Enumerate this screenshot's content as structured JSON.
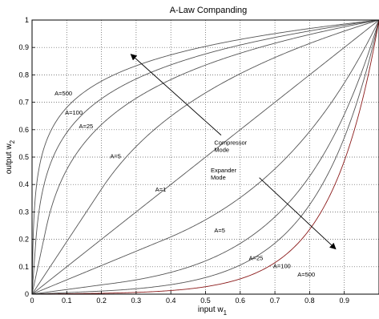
{
  "chart_data": {
    "type": "line",
    "title": "A-Law Companding",
    "xlabel_base": "input w",
    "xlabel_sub": "1",
    "ylabel_base": "output w",
    "ylabel_sub": "2",
    "xlim": [
      0,
      1
    ],
    "ylim": [
      0,
      1
    ],
    "grid": true,
    "xticks": [
      "0",
      "0.1",
      "0.2",
      "0.3",
      "0.4",
      "0.5",
      "0.6",
      "0.7",
      "0.8",
      "0.9"
    ],
    "yticks": [
      "0",
      "0.1",
      "0.2",
      "0.3",
      "0.4",
      "0.5",
      "0.6",
      "0.7",
      "0.8",
      "0.9",
      "1"
    ],
    "series": [
      {
        "name": "A=500",
        "mode": "compressor",
        "A": 500,
        "color": "#555555"
      },
      {
        "name": "A=100",
        "mode": "compressor",
        "A": 100,
        "color": "#555555"
      },
      {
        "name": "A=25",
        "mode": "compressor",
        "A": 25,
        "color": "#555555"
      },
      {
        "name": "A=5",
        "mode": "compressor",
        "A": 5,
        "color": "#555555"
      },
      {
        "name": "A=1",
        "mode": "linear",
        "A": 1,
        "color": "#555555"
      },
      {
        "name": "A=5",
        "mode": "expander",
        "A": 5,
        "color": "#555555"
      },
      {
        "name": "A=25",
        "mode": "expander",
        "A": 25,
        "color": "#555555"
      },
      {
        "name": "A=100",
        "mode": "expander",
        "A": 100,
        "color": "#555555"
      },
      {
        "name": "A=500",
        "mode": "expander",
        "A": 500,
        "color": "#8b1a1a"
      }
    ],
    "curve_labels": [
      {
        "text": "A=500",
        "x": 0.065,
        "y": 0.725
      },
      {
        "text": "A=100",
        "x": 0.095,
        "y": 0.655
      },
      {
        "text": "A=25",
        "x": 0.135,
        "y": 0.605
      },
      {
        "text": "A=5",
        "x": 0.225,
        "y": 0.495
      },
      {
        "text": "A=1",
        "x": 0.355,
        "y": 0.375
      },
      {
        "text": "A=5",
        "x": 0.525,
        "y": 0.225
      },
      {
        "text": "A=25",
        "x": 0.625,
        "y": 0.125
      },
      {
        "text": "A=100",
        "x": 0.695,
        "y": 0.095
      },
      {
        "text": "A=500",
        "x": 0.765,
        "y": 0.065
      }
    ],
    "annotations": [
      {
        "lines": [
          "Compressor",
          "Mode"
        ],
        "x": 0.525,
        "y": 0.545,
        "arrow_from": [
          0.545,
          0.58
        ],
        "arrow_to": [
          0.285,
          0.875
        ]
      },
      {
        "lines": [
          "Expander",
          "Mode"
        ],
        "x": 0.515,
        "y": 0.445,
        "arrow_from": [
          0.655,
          0.425
        ],
        "arrow_to": [
          0.875,
          0.165
        ]
      }
    ]
  }
}
